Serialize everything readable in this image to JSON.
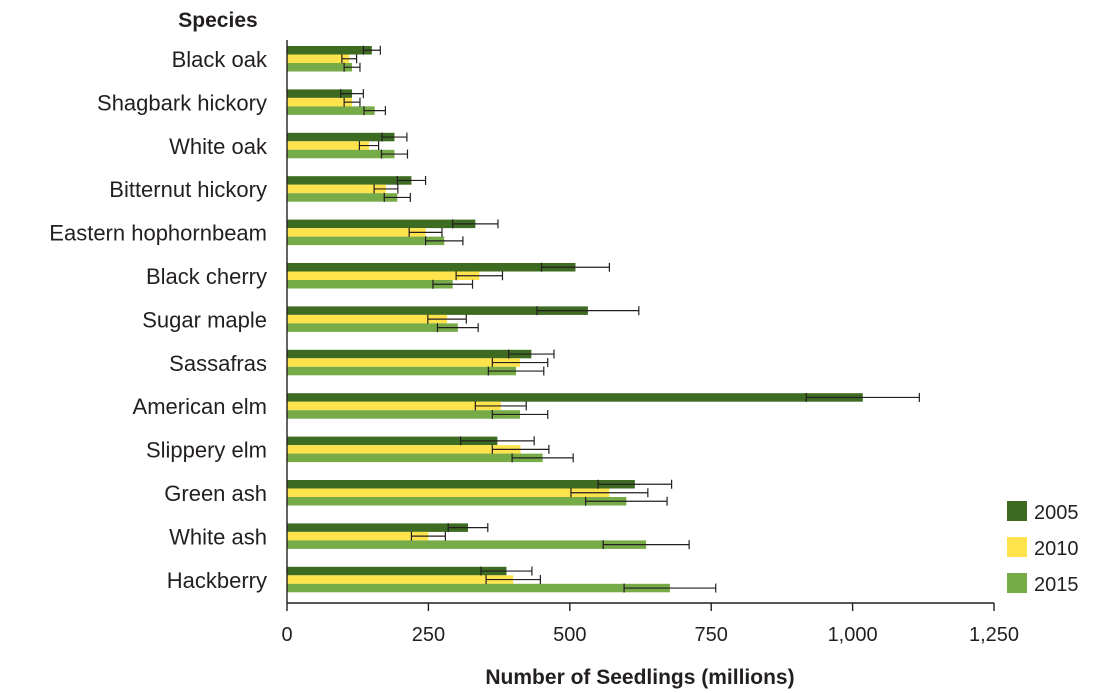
{
  "chart_data": {
    "type": "bar",
    "orientation": "horizontal",
    "title": "",
    "ylabel": "Species",
    "xlabel": "Number of Seedlings (millions)",
    "xlim": [
      0,
      1250
    ],
    "xticks": [
      "0",
      "250",
      "500",
      "750",
      "1,000",
      "1,250"
    ],
    "xtick_values": [
      0,
      250,
      500,
      750,
      1000,
      1250
    ],
    "legend_position": "bottom-right",
    "categories": [
      "Black oak",
      "Shagbark hickory",
      "White oak",
      "Bitternut hickory",
      "Eastern hophornbeam",
      "Black cherry",
      "Sugar maple",
      "Sassafras",
      "American elm",
      "Slippery elm",
      "Green ash",
      "White ash",
      "Hackberry"
    ],
    "series": [
      {
        "name": "2005",
        "color": "#3d6b21",
        "values": [
          150,
          115,
          190,
          220,
          333,
          510,
          532,
          432,
          1018,
          372,
          615,
          320,
          388
        ],
        "errors": [
          15,
          20,
          22,
          25,
          40,
          60,
          90,
          40,
          100,
          65,
          65,
          35,
          45
        ]
      },
      {
        "name": "2010",
        "color": "#ffe34d",
        "values": [
          110,
          115,
          145,
          175,
          245,
          340,
          283,
          412,
          378,
          413,
          570,
          250,
          400
        ]
      },
      {
        "name": "2015",
        "color": "#76ab47",
        "values": [
          115,
          155,
          190,
          195,
          278,
          293,
          302,
          405,
          412,
          452,
          600,
          635,
          677
        ]
      }
    ]
  }
}
